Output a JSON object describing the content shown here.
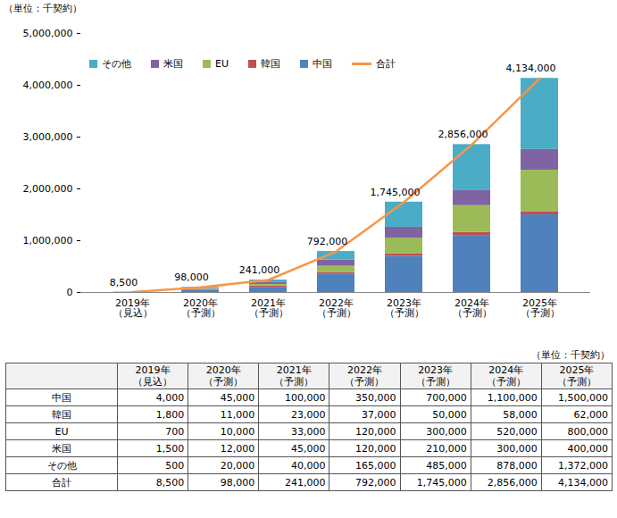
{
  "chart_data": {
    "type": "bar",
    "stacked": true,
    "y_label": "（単位：千契約）",
    "categories": [
      "2019年\n（見込）",
      "2020年\n（予測）",
      "2021年\n（予測）",
      "2022年\n（予測）",
      "2023年\n（予測）",
      "2024年\n（予測）",
      "2025年\n（予測）"
    ],
    "ylim": [
      0,
      5000000
    ],
    "yticks": [
      0,
      {
        "value": 1000000,
        "label": "1,000,000"
      },
      {
        "value": 2000000,
        "label": "2,000,000"
      },
      {
        "value": 3000000,
        "label": "3,000,000"
      },
      {
        "value": 4000000,
        "label": "4,000,000"
      },
      {
        "value": 5000000,
        "label": "5,000,000"
      }
    ],
    "grid": false,
    "legend": "top-left",
    "series": [
      {
        "name": "中国",
        "color": "#4f81bd",
        "values": [
          4000,
          45000,
          100000,
          350000,
          700000,
          1100000,
          1500000
        ]
      },
      {
        "name": "韓国",
        "color": "#c0504d",
        "values": [
          1800,
          11000,
          23000,
          37000,
          50000,
          58000,
          62000
        ]
      },
      {
        "name": "EU",
        "color": "#9bbb59",
        "values": [
          700,
          10000,
          33000,
          120000,
          300000,
          520000,
          800000
        ]
      },
      {
        "name": "米国",
        "color": "#8064a2",
        "values": [
          1500,
          12000,
          45000,
          120000,
          210000,
          300000,
          400000
        ]
      },
      {
        "name": "その他",
        "color": "#4bacc6",
        "values": [
          500,
          20000,
          40000,
          165000,
          485000,
          878000,
          1372000
        ]
      },
      {
        "name": "合計",
        "type": "line",
        "color": "#f79646",
        "data_labels": true,
        "values": [
          8500,
          98000,
          241000,
          792000,
          1745000,
          2856000,
          4134000
        ],
        "value_labels": [
          "8,500",
          "98,000",
          "241,000",
          "792,000",
          "1,745,000",
          "2,856,000",
          "4,134,000"
        ]
      }
    ]
  },
  "table": {
    "unit": "（単位：千契約）",
    "header": [
      "2019年\n（見込）",
      "2020年\n（予測）",
      "2021年\n（予測）",
      "2022年\n（予測）",
      "2023年\n（予測）",
      "2024年\n（予測）",
      "2025年\n（予測）"
    ],
    "rows": [
      [
        "中国",
        "4,000",
        "45,000",
        "100,000",
        "350,000",
        "700,000",
        "1,100,000",
        "1,500,000"
      ],
      [
        "韓国",
        "1,800",
        "11,000",
        "23,000",
        "37,000",
        "50,000",
        "58,000",
        "62,000"
      ],
      [
        "EU",
        "700",
        "10,000",
        "33,000",
        "120,000",
        "300,000",
        "520,000",
        "800,000"
      ],
      [
        "米国",
        "1,500",
        "12,000",
        "45,000",
        "120,000",
        "210,000",
        "300,000",
        "400,000"
      ],
      [
        "その他",
        "500",
        "20,000",
        "40,000",
        "165,000",
        "485,000",
        "878,000",
        "1,372,000"
      ],
      [
        "合計",
        "8,500",
        "98,000",
        "241,000",
        "792,000",
        "1,745,000",
        "2,856,000",
        "4,134,000"
      ]
    ]
  }
}
